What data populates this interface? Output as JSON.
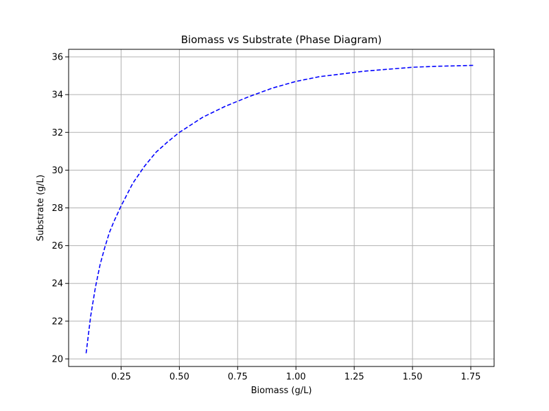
{
  "chart_data": {
    "type": "line",
    "title": "Biomass vs Substrate (Phase Diagram)",
    "xlabel": "Biomass (g/L)",
    "ylabel": "Substrate (g/L)",
    "xlim": [
      0.025,
      1.85
    ],
    "ylim": [
      19.6,
      36.4
    ],
    "x_ticks": [
      0.25,
      0.5,
      0.75,
      1.0,
      1.25,
      1.5,
      1.75
    ],
    "x_tick_labels": [
      "0.25",
      "0.50",
      "0.75",
      "1.00",
      "1.25",
      "1.50",
      "1.75"
    ],
    "y_ticks": [
      20,
      22,
      24,
      26,
      28,
      30,
      32,
      34,
      36
    ],
    "y_tick_labels": [
      "20",
      "22",
      "24",
      "26",
      "28",
      "30",
      "32",
      "34",
      "36"
    ],
    "grid": true,
    "series": [
      {
        "line_style": "dashed",
        "color": "#0000ff",
        "x": [
          0.1,
          0.12,
          0.14,
          0.16,
          0.18,
          0.2,
          0.22,
          0.25,
          0.3,
          0.35,
          0.4,
          0.45,
          0.5,
          0.6,
          0.7,
          0.75,
          0.8,
          0.9,
          1.0,
          1.1,
          1.2,
          1.25,
          1.3,
          1.4,
          1.5,
          1.6,
          1.7,
          1.76
        ],
        "y": [
          20.3,
          22.3,
          23.8,
          25.0,
          25.9,
          26.7,
          27.3,
          28.1,
          29.3,
          30.2,
          30.95,
          31.5,
          32.0,
          32.8,
          33.4,
          33.65,
          33.9,
          34.35,
          34.7,
          34.95,
          35.1,
          35.18,
          35.25,
          35.35,
          35.45,
          35.5,
          35.53,
          35.55
        ]
      }
    ]
  }
}
